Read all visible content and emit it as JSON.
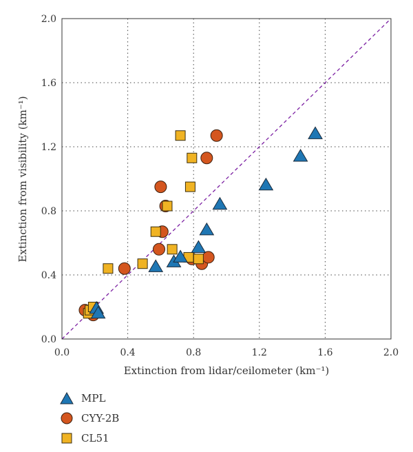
{
  "chart_data": {
    "type": "scatter",
    "xlabel": "Extinction from lidar/ceilometer",
    "xlabel_unit": "(km⁻¹)",
    "ylabel": "Extinction from visibility",
    "ylabel_unit": "(km⁻¹)",
    "xlim": [
      0,
      2.0
    ],
    "ylim": [
      0,
      2.0
    ],
    "xticks": [
      "0.0",
      "0.4",
      "0.8",
      "1.2",
      "1.6",
      "2.0"
    ],
    "yticks": [
      "0.0",
      "0.4",
      "0.8",
      "1.2",
      "1.6",
      "2.0"
    ],
    "grid": true,
    "reference_line": {
      "type": "1:1",
      "color": "#7B1FA2",
      "style": "dashed"
    },
    "legend_position": "below-left",
    "series": [
      {
        "name": "MPL",
        "marker": "triangle",
        "color": "#1F77B4",
        "points": [
          [
            0.21,
            0.19
          ],
          [
            0.22,
            0.16
          ],
          [
            0.57,
            0.45
          ],
          [
            0.68,
            0.48
          ],
          [
            0.72,
            0.51
          ],
          [
            0.83,
            0.57
          ],
          [
            0.88,
            0.68
          ],
          [
            0.96,
            0.84
          ],
          [
            1.24,
            0.96
          ],
          [
            1.45,
            1.14
          ],
          [
            1.54,
            1.28
          ]
        ]
      },
      {
        "name": "CYY-2B",
        "marker": "circle",
        "color": "#D4561F",
        "points": [
          [
            0.14,
            0.18
          ],
          [
            0.19,
            0.15
          ],
          [
            0.38,
            0.44
          ],
          [
            0.59,
            0.56
          ],
          [
            0.61,
            0.67
          ],
          [
            0.6,
            0.95
          ],
          [
            0.63,
            0.83
          ],
          [
            0.79,
            0.5
          ],
          [
            0.85,
            0.47
          ],
          [
            0.89,
            0.51
          ],
          [
            0.88,
            1.13
          ],
          [
            0.94,
            1.27
          ]
        ]
      },
      {
        "name": "CL51",
        "marker": "square",
        "color": "#F0B323",
        "points": [
          [
            0.16,
            0.16
          ],
          [
            0.17,
            0.18
          ],
          [
            0.19,
            0.2
          ],
          [
            0.28,
            0.44
          ],
          [
            0.49,
            0.47
          ],
          [
            0.57,
            0.67
          ],
          [
            0.64,
            0.83
          ],
          [
            0.67,
            0.56
          ],
          [
            0.72,
            1.27
          ],
          [
            0.77,
            0.51
          ],
          [
            0.78,
            0.95
          ],
          [
            0.79,
            1.13
          ],
          [
            0.83,
            0.5
          ]
        ]
      }
    ]
  }
}
